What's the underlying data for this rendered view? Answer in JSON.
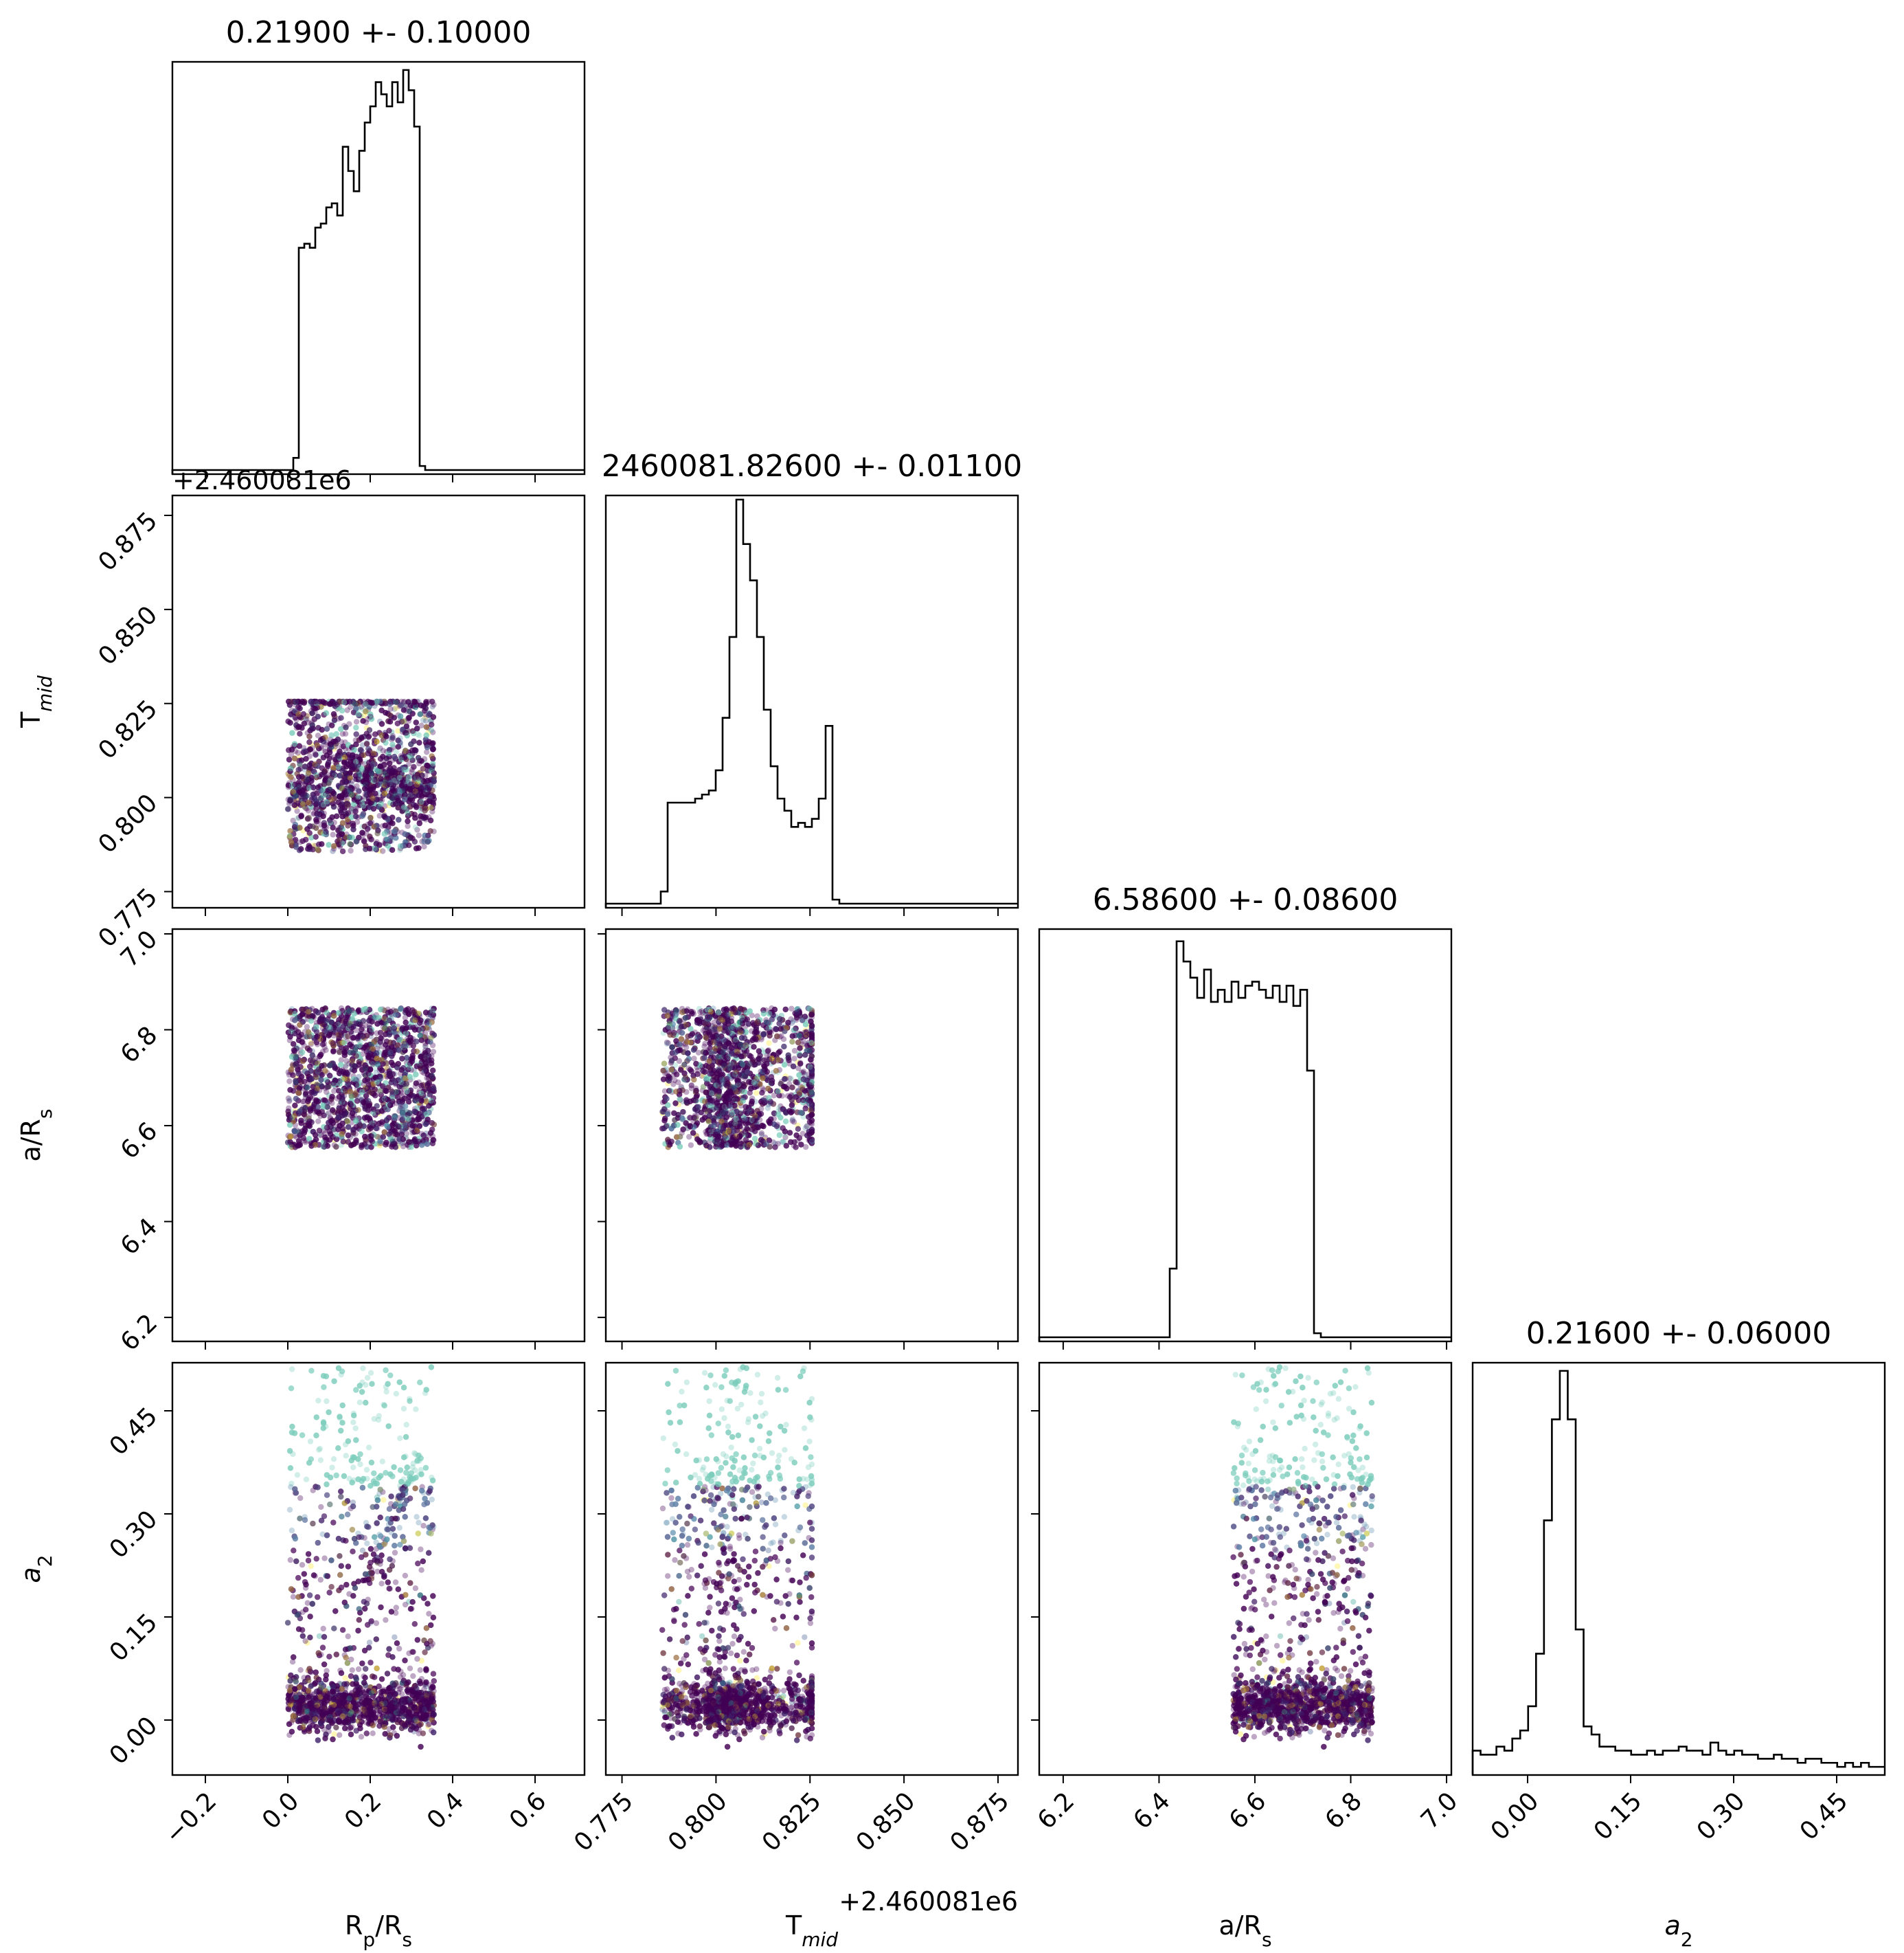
{
  "chart_data": {
    "type": "corner",
    "parameters": [
      {
        "key": "rp",
        "label_html": "R<tspan baseline-shift='sub' font-size='28'>p</tspan>/R<tspan baseline-shift='sub' font-size='28'>s</tspan>",
        "title": "0.21900 +- 0.10000",
        "range": [
          -0.28,
          0.72
        ],
        "ticks": [
          -0.2,
          0.0,
          0.2,
          0.4,
          0.6
        ],
        "tick_labels": [
          "−0.2",
          "0.0",
          "0.2",
          "0.4",
          "0.6"
        ]
      },
      {
        "key": "tmid",
        "label_html": "T<tspan baseline-shift='sub' font-size='28' font-style='italic'>mid</tspan>",
        "title": "2460081.82600 +- 0.01100",
        "range": [
          0.7707,
          0.8803
        ],
        "ticks": [
          0.775,
          0.8,
          0.825,
          0.85,
          0.875
        ],
        "tick_labels": [
          "0.775",
          "0.800",
          "0.825",
          "0.850",
          "0.875"
        ],
        "offset_label": "+2.460081e6"
      },
      {
        "key": "ars",
        "label_html": "a/R<tspan baseline-shift='sub' font-size='28'>s</tspan>",
        "title": "6.58600 +- 0.08600",
        "range": [
          6.15,
          7.01
        ],
        "ticks": [
          6.2,
          6.4,
          6.6,
          6.8,
          7.0
        ],
        "tick_labels": [
          "6.2",
          "6.4",
          "6.6",
          "6.8",
          "7.0"
        ]
      },
      {
        "key": "a2",
        "label_html": "<tspan font-style='italic'>a</tspan><tspan baseline-shift='sub' font-size='28'>2</tspan>",
        "title": "0.21600 +- 0.06000",
        "range": [
          -0.08,
          0.52
        ],
        "ticks": [
          0.0,
          0.15,
          0.3,
          0.45
        ],
        "tick_labels": [
          "0.00",
          "0.15",
          "0.30",
          "0.45"
        ]
      }
    ],
    "histograms": {
      "rp": [
        0,
        0,
        0,
        0,
        0,
        0,
        0,
        0,
        0,
        0,
        0,
        0,
        0,
        0,
        0,
        0,
        0,
        0,
        0,
        0,
        0,
        0,
        0.03,
        0.55,
        0.56,
        0.55,
        0.6,
        0.61,
        0.65,
        0.66,
        0.63,
        0.8,
        0.74,
        0.69,
        0.79,
        0.86,
        0.9,
        0.96,
        0.93,
        0.9,
        0.96,
        0.91,
        0.99,
        0.94,
        0.85,
        0.01,
        0,
        0,
        0,
        0,
        0,
        0,
        0,
        0,
        0,
        0,
        0,
        0,
        0,
        0,
        0,
        0,
        0,
        0,
        0,
        0,
        0,
        0,
        0,
        0,
        0,
        0,
        0,
        0,
        0
      ],
      "tmid": [
        0,
        0,
        0,
        0,
        0,
        0,
        0,
        0,
        0.03,
        0.25,
        0.25,
        0.25,
        0.25,
        0.26,
        0.27,
        0.28,
        0.33,
        0.46,
        0.66,
        1.0,
        0.89,
        0.8,
        0.66,
        0.48,
        0.34,
        0.26,
        0.23,
        0.19,
        0.2,
        0.19,
        0.21,
        0.26,
        0.44,
        0.01,
        0,
        0,
        0,
        0,
        0,
        0,
        0,
        0,
        0,
        0,
        0,
        0,
        0,
        0,
        0,
        0,
        0,
        0,
        0,
        0,
        0,
        0,
        0,
        0,
        0,
        0
      ],
      "ars": [
        0,
        0,
        0,
        0,
        0,
        0,
        0,
        0,
        0,
        0,
        0,
        0,
        0,
        0,
        0,
        0,
        0,
        0,
        0,
        0.17,
        0.98,
        0.93,
        0.89,
        0.84,
        0.91,
        0.83,
        0.86,
        0.83,
        0.88,
        0.84,
        0.87,
        0.88,
        0.86,
        0.84,
        0.87,
        0.83,
        0.87,
        0.82,
        0.86,
        0.66,
        0.01,
        0,
        0,
        0,
        0,
        0,
        0,
        0,
        0,
        0,
        0,
        0,
        0,
        0,
        0,
        0,
        0,
        0,
        0,
        0
      ],
      "a2": [
        0.05,
        0.04,
        0.04,
        0.06,
        0.05,
        0.08,
        0.1,
        0.16,
        0.29,
        0.62,
        0.87,
        0.99,
        0.87,
        0.35,
        0.11,
        0.09,
        0.06,
        0.06,
        0.05,
        0.05,
        0.04,
        0.04,
        0.05,
        0.04,
        0.05,
        0.05,
        0.06,
        0.05,
        0.05,
        0.04,
        0.07,
        0.05,
        0.04,
        0.05,
        0.04,
        0.04,
        0.03,
        0.03,
        0.04,
        0.03,
        0.03,
        0.02,
        0.03,
        0.03,
        0.02,
        0.02,
        0.01,
        0.02,
        0.01,
        0.02,
        0.01,
        0.01
      ]
    }
  }
}
